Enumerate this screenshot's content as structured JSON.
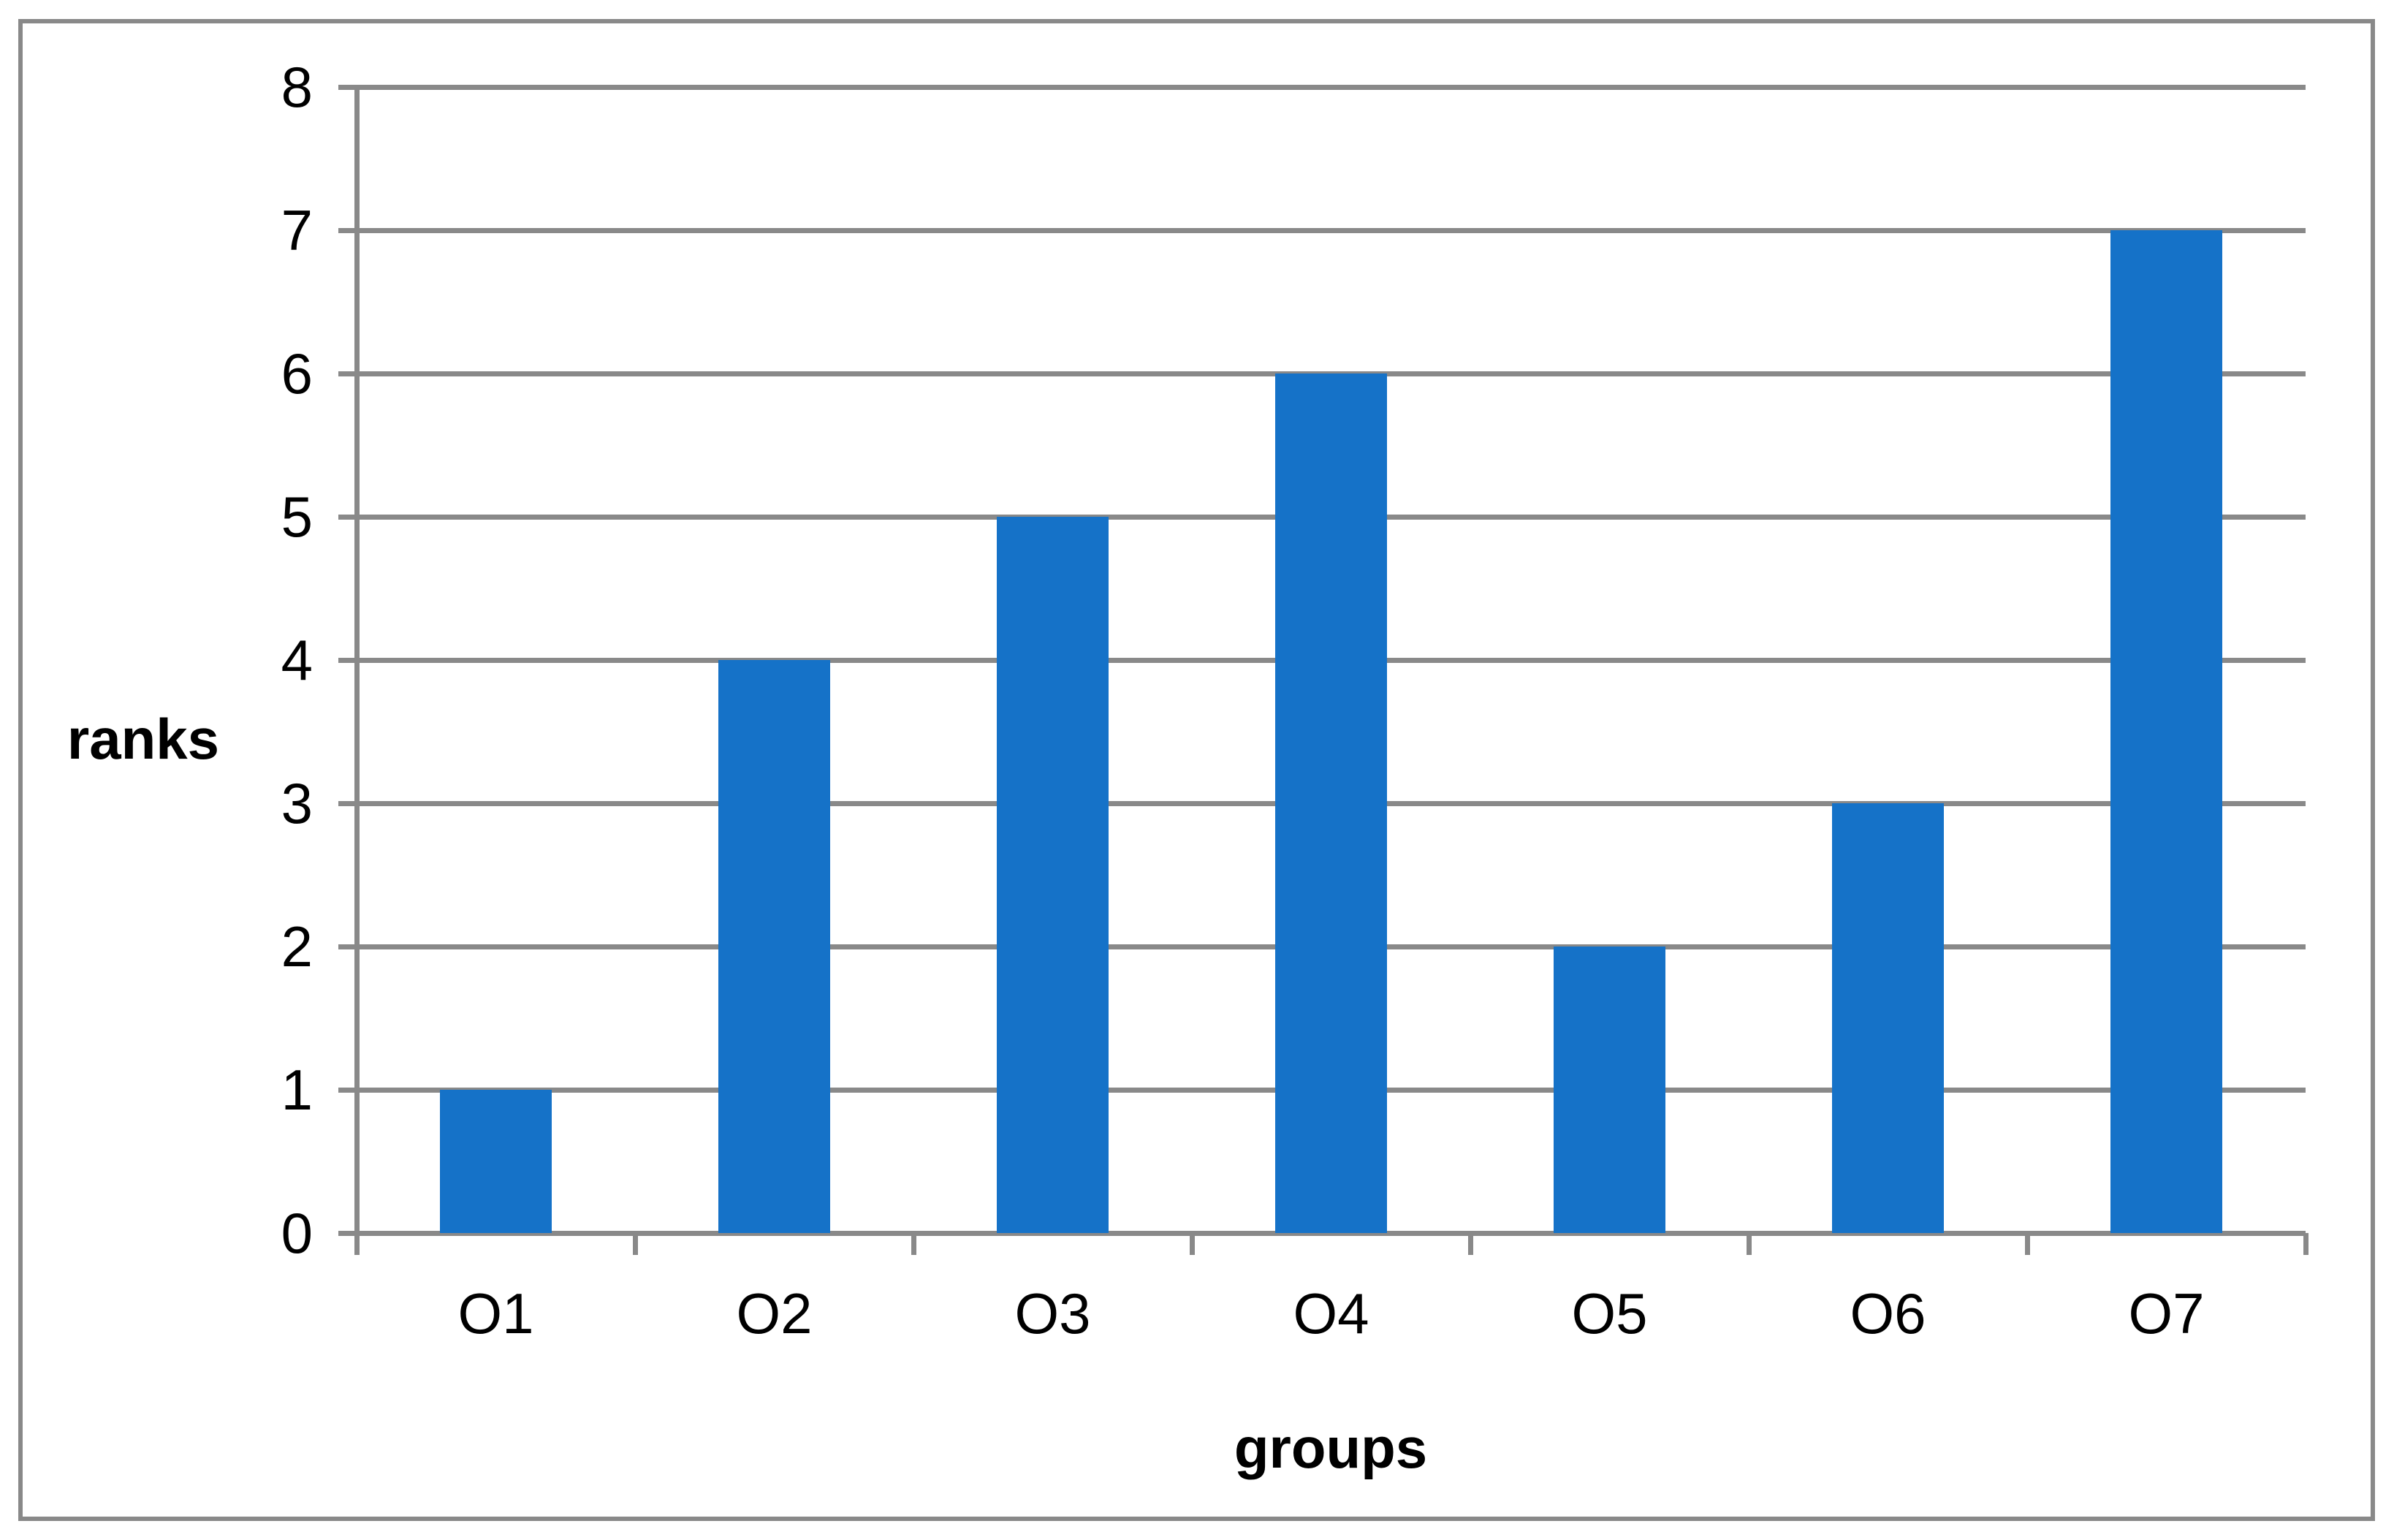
{
  "chart_data": {
    "type": "bar",
    "categories": [
      "O1",
      "O2",
      "O3",
      "O4",
      "O5",
      "O6",
      "O7"
    ],
    "values": [
      1,
      4,
      5,
      6,
      2,
      3,
      7
    ],
    "title": "",
    "xlabel": "groups",
    "ylabel": "ranks",
    "ylim": [
      0,
      8
    ],
    "ytick_step": 1,
    "ytick_labels": [
      "0",
      "1",
      "2",
      "3",
      "4",
      "5",
      "6",
      "7",
      "8"
    ],
    "grid": true,
    "legend": "none",
    "colors": {
      "bar": "#1572C8",
      "gridline": "#898989",
      "axis": "#898989",
      "border": "#898989",
      "text": "#000000",
      "background": "#ffffff"
    }
  }
}
